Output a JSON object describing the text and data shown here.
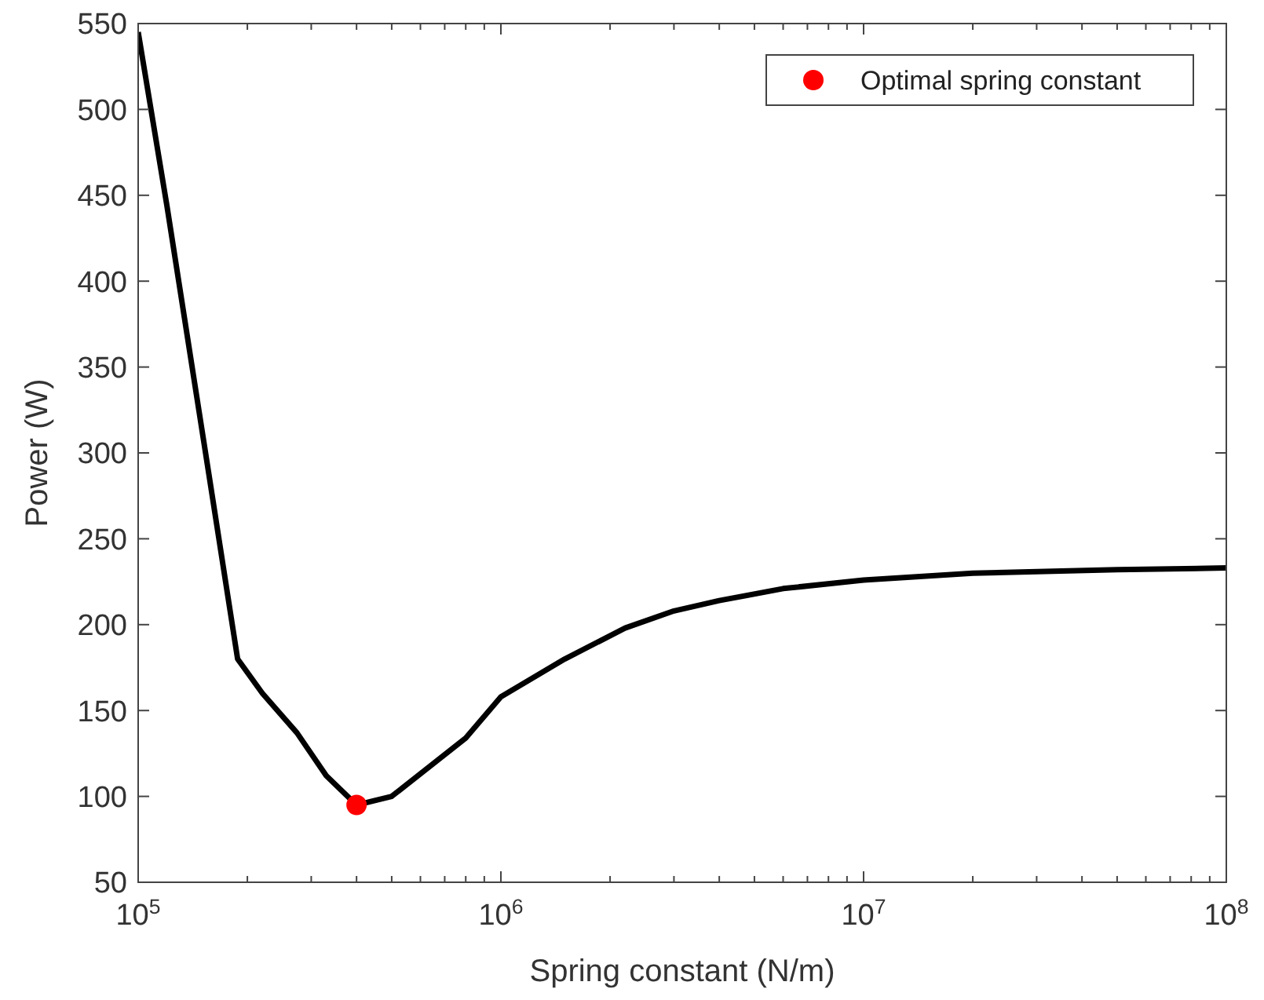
{
  "chart_data": {
    "type": "line",
    "xlabel": "Spring constant (N/m)",
    "ylabel": "Power (W)",
    "log": "x",
    "xlim": [
      100000,
      100000000
    ],
    "xticks": [
      {
        "value": 100000,
        "label": "10$^{5}$"
      },
      {
        "value": 1000000,
        "label": "10$^{6}$"
      },
      {
        "value": 10000000,
        "label": "10$^{7}$"
      },
      {
        "value": 100000000,
        "label": "10$^{8}$"
      }
    ],
    "ylim": [
      50,
      550
    ],
    "yticks": [
      50,
      100,
      150,
      200,
      250,
      300,
      350,
      400,
      450,
      500,
      550
    ],
    "grid": false,
    "legend": "top right",
    "series": [
      {
        "color": "#000000",
        "marker": "none",
        "x": [
          100000,
          120000,
          156000,
          188000,
          220000,
          274000,
          330000,
          400000,
          500000,
          800000,
          1000000,
          1500000,
          2200000,
          3000000,
          4000000,
          6000000,
          10000000,
          20000000,
          50000000,
          100000000
        ],
        "values": [
          545,
          444,
          290,
          180,
          160,
          137,
          112,
          95,
          100,
          134,
          158,
          180,
          198,
          208,
          214,
          221,
          226,
          230,
          232,
          233
        ]
      },
      {
        "type": "scatter",
        "name": "Optimal spring constant",
        "color": "#ff0000",
        "marker": "circle",
        "x": [
          400000
        ],
        "values": [
          95
        ]
      }
    ]
  }
}
